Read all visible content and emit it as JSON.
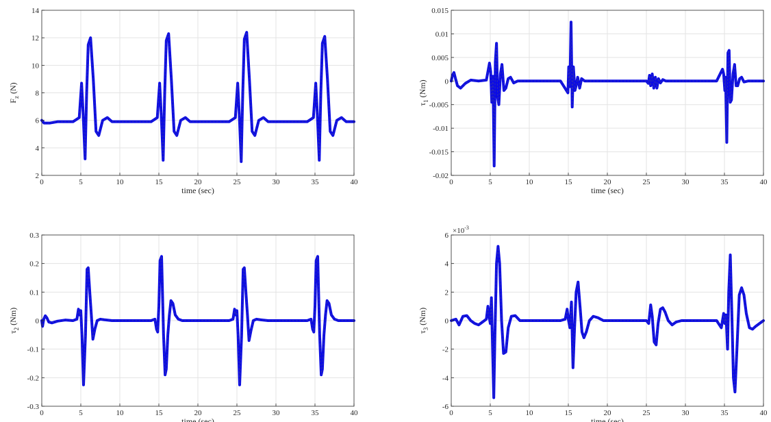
{
  "colors": {
    "series": "#0a0ae6",
    "dashed_overlay": "#2a2ab8",
    "axis": "#262626",
    "grid": "#e3e3e3"
  },
  "chart_data": [
    {
      "type": "line",
      "xlabel": "time (sec)",
      "ylabel": "F_z (N)",
      "ylabel_main": "F",
      "ylabel_sub": "z",
      "ylabel_unit": " (N)",
      "xlim": [
        0,
        40
      ],
      "ylim": [
        2,
        14
      ],
      "xticks": [
        0,
        5,
        10,
        15,
        20,
        25,
        30,
        35,
        40
      ],
      "xtick_labels": [
        "0",
        "5",
        "10",
        "15",
        "20",
        "25",
        "30",
        "35",
        "40"
      ],
      "yticks": [
        2,
        4,
        6,
        8,
        10,
        12,
        14
      ],
      "ytick_labels": [
        "2",
        "4",
        "6",
        "8",
        "10",
        "12",
        "14"
      ],
      "exponent_label": "",
      "grid": true,
      "series": [
        {
          "x": [
            0,
            0.3,
            1,
            2,
            3,
            4,
            4.8,
            5.1,
            5.3,
            5.55,
            5.75,
            5.95,
            6.25,
            6.6,
            6.95,
            7.3,
            7.8,
            8.4,
            9,
            10,
            11,
            12,
            13,
            14,
            14.8,
            15.1,
            15.3,
            15.55,
            15.75,
            15.95,
            16.25,
            16.6,
            16.95,
            17.3,
            17.8,
            18.4,
            19,
            20,
            21,
            22,
            23,
            24,
            24.8,
            25.1,
            25.3,
            25.55,
            25.75,
            25.95,
            26.25,
            26.6,
            26.95,
            27.3,
            27.8,
            28.4,
            29,
            30,
            31,
            32,
            33,
            34,
            34.8,
            35.1,
            35.3,
            35.55,
            35.75,
            35.95,
            36.25,
            36.6,
            36.95,
            37.3,
            37.8,
            38.4,
            39,
            40
          ],
          "y": [
            6.0,
            5.8,
            5.8,
            5.9,
            5.9,
            5.9,
            6.2,
            8.7,
            6.5,
            3.2,
            8.0,
            11.5,
            12.0,
            9.0,
            5.2,
            4.9,
            6.0,
            6.2,
            5.9,
            5.9,
            5.9,
            5.9,
            5.9,
            5.9,
            6.2,
            8.7,
            6.5,
            3.1,
            8.0,
            11.8,
            12.3,
            9.0,
            5.2,
            4.9,
            6.0,
            6.2,
            5.9,
            5.9,
            5.9,
            5.9,
            5.9,
            5.9,
            6.2,
            8.7,
            6.5,
            3.0,
            8.0,
            11.9,
            12.4,
            9.0,
            5.2,
            4.9,
            6.0,
            6.2,
            5.9,
            5.9,
            5.9,
            5.9,
            5.9,
            5.9,
            6.2,
            8.7,
            6.5,
            3.1,
            8.0,
            11.6,
            12.1,
            9.0,
            5.2,
            4.9,
            6.0,
            6.2,
            5.9,
            5.9
          ]
        }
      ]
    },
    {
      "type": "line",
      "xlabel": "time (sec)",
      "ylabel": "τ_1 (Nm)",
      "ylabel_main": "τ",
      "ylabel_sub": "1",
      "ylabel_unit": " (Nm)",
      "xlim": [
        0,
        40
      ],
      "ylim": [
        -0.02,
        0.015
      ],
      "xticks": [
        0,
        5,
        10,
        15,
        20,
        25,
        30,
        35,
        40
      ],
      "xtick_labels": [
        "0",
        "5",
        "10",
        "15",
        "20",
        "25",
        "30",
        "35",
        "40"
      ],
      "yticks": [
        -0.02,
        -0.015,
        -0.01,
        -0.005,
        0,
        0.005,
        0.01,
        0.015
      ],
      "ytick_labels": [
        "-0.02",
        "-0.015",
        "-0.01",
        "-0.005",
        "0",
        "0.005",
        "0.01",
        "0.015"
      ],
      "exponent_label": "",
      "grid": true,
      "series": [
        {
          "x": [
            0,
            0.15,
            0.35,
            0.55,
            0.8,
            1.2,
            1.8,
            2.5,
            3.5,
            4.5,
            4.9,
            5.05,
            5.2,
            5.35,
            5.5,
            5.65,
            5.8,
            5.95,
            6.1,
            6.3,
            6.5,
            6.75,
            7.0,
            7.3,
            7.6,
            8.0,
            8.5,
            9,
            10,
            11,
            12,
            13,
            14,
            14.95,
            15.05,
            15.2,
            15.35,
            15.5,
            15.65,
            15.85,
            16.0,
            16.2,
            16.45,
            16.7,
            17.1,
            17.6,
            18,
            19,
            20,
            21,
            22,
            23,
            24,
            25,
            25.25,
            25.4,
            25.55,
            25.75,
            25.95,
            26.15,
            26.35,
            26.55,
            26.8,
            27.1,
            27.5,
            28,
            29,
            30,
            31,
            32,
            33,
            34,
            34.75,
            34.9,
            35.05,
            35.15,
            35.3,
            35.45,
            35.6,
            35.75,
            35.9,
            36.1,
            36.3,
            36.5,
            36.7,
            36.95,
            37.2,
            37.5,
            38,
            38.5,
            39,
            40
          ],
          "y": [
            0,
            0.0012,
            0.0018,
            0.0005,
            -0.001,
            -0.0015,
            -0.0005,
            0.0002,
            0,
            0.0002,
            0.0038,
            0.002,
            -0.0045,
            0.001,
            -0.018,
            0.004,
            0.008,
            -0.0035,
            -0.005,
            0.0015,
            0.0035,
            -0.002,
            -0.0015,
            0.0005,
            0.0008,
            -0.0004,
            0,
            0,
            0,
            0,
            0,
            0,
            0,
            -0.0025,
            0.003,
            -0.0012,
            0.0125,
            -0.0055,
            0.003,
            -0.002,
            -0.001,
            0.0008,
            -0.0015,
            0.0005,
            0,
            0,
            0,
            0,
            0,
            0,
            0,
            0,
            0,
            0,
            -0.0005,
            0.0012,
            -0.001,
            0.0015,
            -0.0015,
            0.0008,
            -0.0015,
            0.0005,
            -0.0004,
            0.0003,
            0,
            0,
            0,
            0,
            0,
            0,
            0,
            0,
            0.0025,
            0.0015,
            -0.002,
            0.0008,
            -0.013,
            0.006,
            0.0065,
            -0.0045,
            -0.004,
            0.0015,
            0.0035,
            -0.001,
            -0.001,
            0.0005,
            0.0008,
            -0.0002,
            0,
            0,
            0,
            0
          ]
        }
      ]
    },
    {
      "type": "line",
      "xlabel": "time (sec)",
      "ylabel": "τ_2 (Nm)",
      "ylabel_main": "τ",
      "ylabel_sub": "2",
      "ylabel_unit": " (Nm)",
      "xlim": [
        0,
        40
      ],
      "ylim": [
        -0.3,
        0.3
      ],
      "xticks": [
        0,
        5,
        10,
        15,
        20,
        25,
        30,
        35,
        40
      ],
      "xtick_labels": [
        "0",
        "5",
        "10",
        "15",
        "20",
        "25",
        "30",
        "35",
        "40"
      ],
      "yticks": [
        -0.3,
        -0.2,
        -0.1,
        0,
        0.1,
        0.2,
        0.3
      ],
      "ytick_labels": [
        "-0.3",
        "-0.2",
        "-0.1",
        "0",
        "0.1",
        "0.2",
        "0.3"
      ],
      "exponent_label": "",
      "grid": true,
      "series": [
        {
          "x": [
            0,
            0.1,
            0.25,
            0.45,
            0.65,
            0.9,
            1.3,
            2,
            3,
            4,
            4.5,
            4.7,
            4.85,
            5.0,
            5.15,
            5.35,
            5.6,
            5.8,
            5.95,
            6.15,
            6.35,
            6.55,
            6.8,
            7.1,
            7.5,
            8,
            9,
            10,
            11,
            12,
            13,
            14,
            14.5,
            14.7,
            14.85,
            15.0,
            15.15,
            15.35,
            15.6,
            15.8,
            15.95,
            16.15,
            16.35,
            16.55,
            16.8,
            17.1,
            17.5,
            18,
            19,
            20,
            21,
            22,
            23,
            24,
            24.5,
            24.7,
            24.85,
            25.0,
            25.15,
            25.35,
            25.6,
            25.8,
            25.95,
            26.15,
            26.35,
            26.55,
            26.8,
            27.1,
            27.5,
            28,
            29,
            30,
            31,
            32,
            33,
            34,
            34.5,
            34.7,
            34.85,
            35.0,
            35.15,
            35.35,
            35.6,
            35.8,
            35.95,
            36.15,
            36.35,
            36.55,
            36.8,
            37.1,
            37.5,
            38,
            39,
            40
          ],
          "y": [
            0,
            -0.02,
            0.005,
            0.017,
            0.01,
            -0.005,
            -0.008,
            -0.002,
            0.002,
            0,
            0.005,
            0.04,
            0.02,
            0.035,
            -0.05,
            -0.225,
            -0.05,
            0.18,
            0.185,
            0.1,
            0.02,
            -0.065,
            -0.03,
            0,
            0.005,
            0.003,
            0,
            0,
            0,
            0,
            0,
            0,
            0.005,
            -0.03,
            -0.04,
            0.05,
            0.21,
            0.225,
            -0.05,
            -0.19,
            -0.17,
            -0.05,
            0.02,
            0.07,
            0.06,
            0.02,
            0.005,
            0,
            0,
            0,
            0,
            0,
            0,
            0,
            0.005,
            0.04,
            0.02,
            0.035,
            -0.05,
            -0.225,
            -0.05,
            0.18,
            0.185,
            0.1,
            0.02,
            -0.07,
            -0.035,
            0,
            0.005,
            0.003,
            0,
            0,
            0,
            0,
            0,
            0,
            0.005,
            -0.03,
            -0.04,
            0.05,
            0.21,
            0.225,
            -0.05,
            -0.19,
            -0.17,
            -0.05,
            0.02,
            0.07,
            0.06,
            0.02,
            0.005,
            0,
            0,
            0
          ]
        }
      ]
    },
    {
      "type": "line",
      "xlabel": "time (sec)",
      "ylabel": "τ_3 (Nm)",
      "ylabel_main": "τ",
      "ylabel_sub": "3",
      "ylabel_unit": " (Nm)",
      "xlim": [
        0,
        40
      ],
      "ylim": [
        -6,
        6
      ],
      "xticks": [
        0,
        5,
        10,
        15,
        20,
        25,
        30,
        35,
        40
      ],
      "xtick_labels": [
        "0",
        "5",
        "10",
        "15",
        "20",
        "25",
        "30",
        "35",
        "40"
      ],
      "yticks": [
        -6,
        -4,
        -2,
        0,
        2,
        4,
        6
      ],
      "ytick_labels": [
        "-6",
        "-4",
        "-2",
        "0",
        "2",
        "4",
        "6"
      ],
      "exponent_label": "×10",
      "exponent_power": "-3",
      "grid": true,
      "series": [
        {
          "x": [
            0,
            0.3,
            0.6,
            1,
            1.5,
            2,
            2.5,
            3,
            3.5,
            4,
            4.5,
            4.7,
            4.85,
            5.0,
            5.15,
            5.3,
            5.45,
            5.6,
            5.8,
            6.0,
            6.2,
            6.45,
            6.7,
            7,
            7.3,
            7.7,
            8.2,
            8.8,
            9.5,
            10,
            11,
            12,
            13,
            14,
            14.6,
            14.85,
            15.0,
            15.2,
            15.4,
            15.6,
            15.8,
            16.0,
            16.25,
            16.5,
            16.75,
            17.0,
            17.3,
            17.7,
            18.2,
            18.8,
            19.5,
            20,
            21,
            22,
            23,
            24,
            25,
            25.3,
            25.55,
            25.75,
            26.0,
            26.25,
            26.5,
            26.8,
            27.1,
            27.4,
            27.8,
            28.3,
            28.8,
            29.5,
            30,
            31,
            32,
            33,
            34,
            34.6,
            34.9,
            35.05,
            35.2,
            35.4,
            35.55,
            35.75,
            35.95,
            36.15,
            36.35,
            36.6,
            36.9,
            37.2,
            37.5,
            37.8,
            38.2,
            38.6,
            39,
            39.5,
            40
          ],
          "y": [
            0,
            0.05,
            0.1,
            -0.3,
            0.3,
            0.35,
            0,
            -0.2,
            -0.3,
            -0.1,
            0.1,
            1.0,
            0.3,
            -0.2,
            1.6,
            -2.0,
            -5.4,
            -1.0,
            4.0,
            5.2,
            4.0,
            0,
            -2.3,
            -2.2,
            -0.5,
            0.3,
            0.35,
            0,
            0,
            0,
            0,
            0,
            0,
            0,
            0.1,
            0.8,
            0.1,
            -0.5,
            1.3,
            -3.3,
            -0.5,
            2.0,
            2.7,
            1.0,
            -0.8,
            -1.2,
            -0.8,
            0,
            0.3,
            0.2,
            0,
            0,
            0,
            0,
            0,
            0,
            0,
            -0.2,
            1.1,
            0.3,
            -1.5,
            -1.7,
            -0.2,
            0.8,
            0.9,
            0.6,
            0,
            -0.3,
            -0.1,
            0,
            0,
            0,
            0,
            0,
            0,
            -0.5,
            0.5,
            -0.2,
            0.4,
            -2.0,
            2.0,
            4.6,
            0.5,
            -4.0,
            -5.0,
            -2.0,
            1.8,
            2.3,
            1.8,
            0.5,
            -0.5,
            -0.6,
            -0.4,
            -0.2,
            0
          ]
        }
      ]
    }
  ]
}
